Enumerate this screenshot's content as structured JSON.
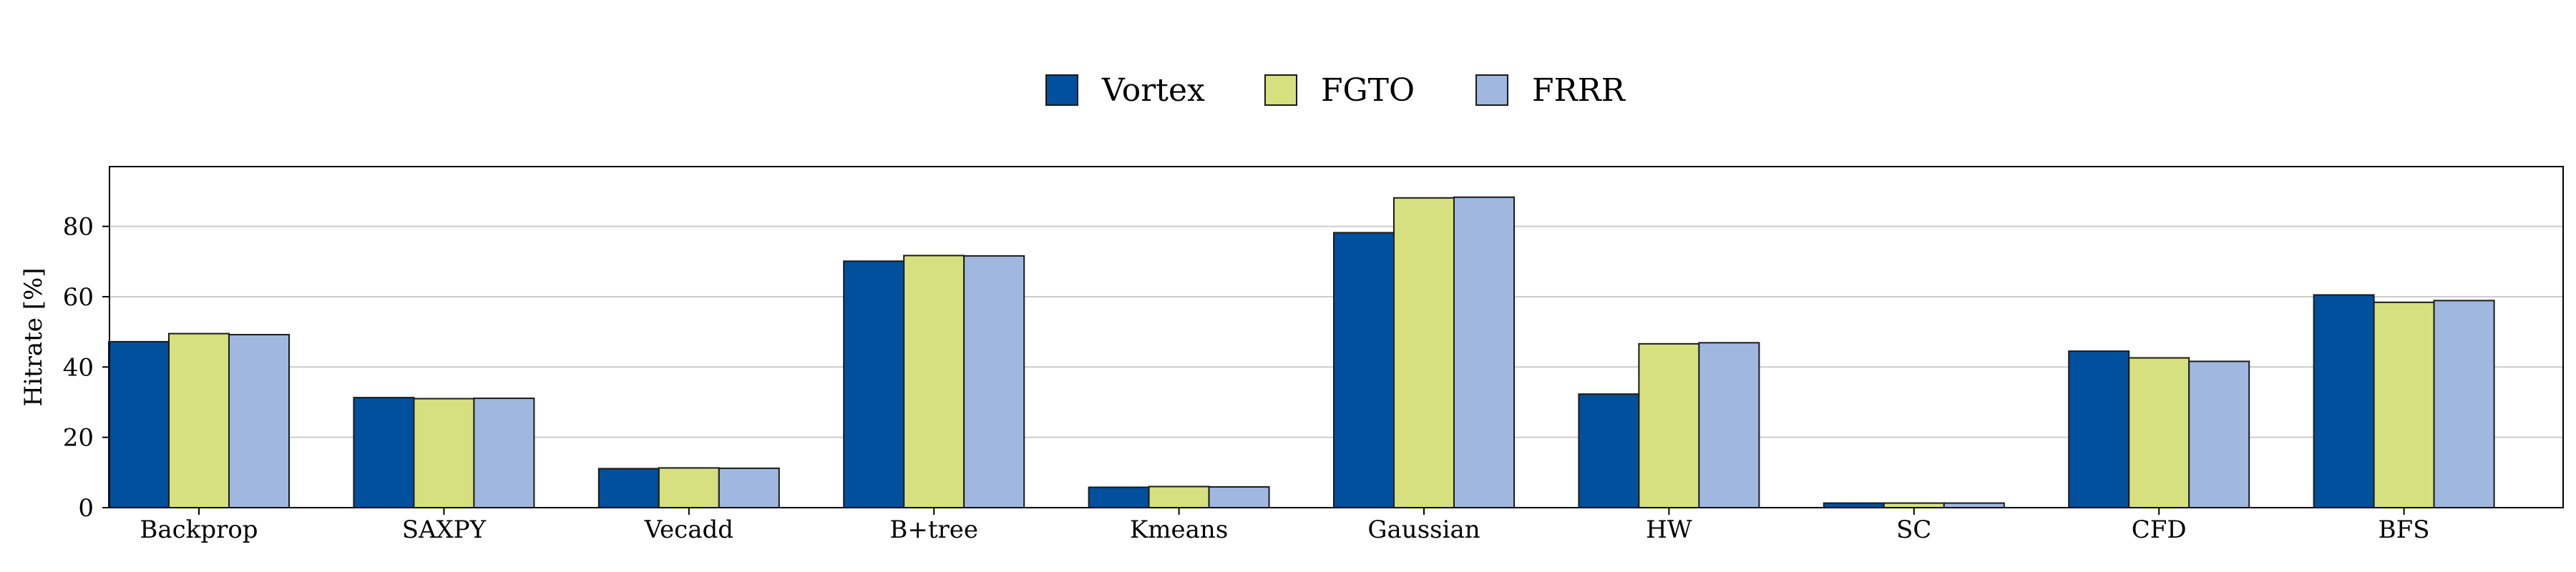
{
  "chart_data": {
    "type": "bar",
    "ylabel": "Hitrate [%]",
    "ylim": [
      0,
      97
    ],
    "yticks": [
      0,
      20,
      40,
      60,
      80
    ],
    "grid": true,
    "legend_position": "top-center",
    "categories": [
      "Backprop",
      "SAXPY",
      "Vecadd",
      "B+tree",
      "Kmeans",
      "Gaussian",
      "HW",
      "SC",
      "CFD",
      "BFS"
    ],
    "series": [
      {
        "name": "Vortex",
        "color": "#00509d",
        "values": [
          47.2,
          31.3,
          11.1,
          70.1,
          5.8,
          78.2,
          32.3,
          1.3,
          44.5,
          60.5
        ]
      },
      {
        "name": "FGTO",
        "color": "#d6e07e",
        "values": [
          49.5,
          31.0,
          11.3,
          71.7,
          6.0,
          88.1,
          46.6,
          1.3,
          42.6,
          58.4
        ]
      },
      {
        "name": "FRRR",
        "color": "#a0b8e0",
        "values": [
          49.2,
          31.1,
          11.2,
          71.6,
          5.9,
          88.3,
          46.9,
          1.3,
          41.6,
          58.9
        ]
      }
    ]
  }
}
